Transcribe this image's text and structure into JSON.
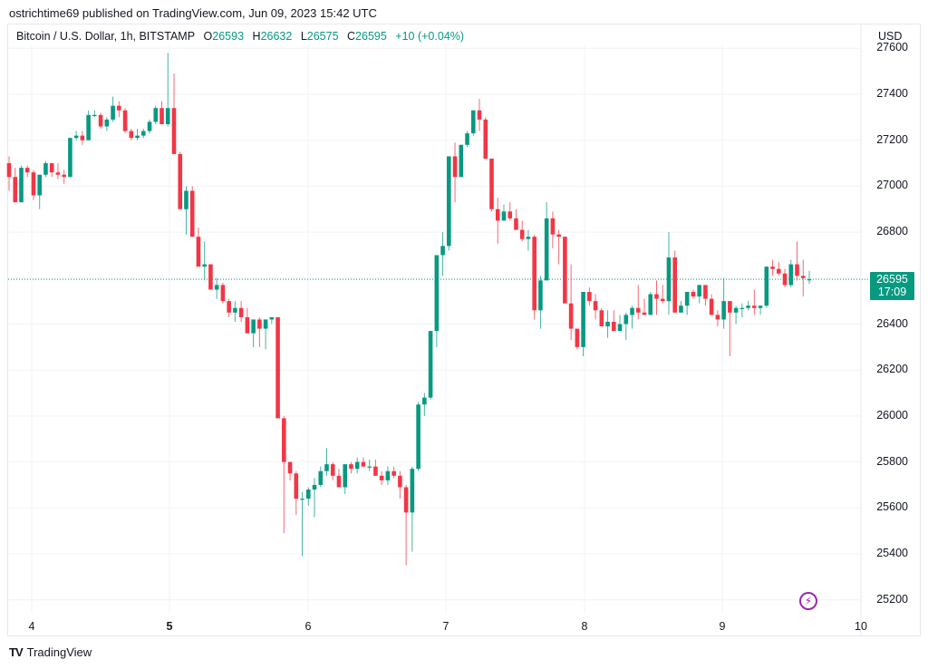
{
  "header": {
    "published_text": "ostrichtime69 published on TradingView.com, Jun 09, 2023 15:42 UTC"
  },
  "legend": {
    "symbol": "Bitcoin / U.S. Dollar, 1h, BITSTAMP",
    "open_prefix": "O",
    "open": "26593",
    "high_prefix": "H",
    "high": "26632",
    "low_prefix": "L",
    "low": "26575",
    "close_prefix": "C",
    "close": "26595",
    "change": "+10 (+0.04%)"
  },
  "price_axis": {
    "currency": "USD",
    "ticks": [
      "27600",
      "27400",
      "27200",
      "27000",
      "26800",
      "26600",
      "26400",
      "26200",
      "26000",
      "25800",
      "25600",
      "25400",
      "25200"
    ],
    "last_price": "26595",
    "countdown": "17:09"
  },
  "time_axis": {
    "ticks": [
      {
        "label": "4",
        "bold": false
      },
      {
        "label": "5",
        "bold": true
      },
      {
        "label": "6",
        "bold": false
      },
      {
        "label": "7",
        "bold": false
      },
      {
        "label": "8",
        "bold": false
      },
      {
        "label": "9",
        "bold": false
      },
      {
        "label": "10",
        "bold": false
      }
    ]
  },
  "colors": {
    "up": "#089981",
    "down": "#f23645",
    "grid": "#f0f3fa",
    "last_line": "#089981",
    "badge": "#089981",
    "bolt": "#9c27b0"
  },
  "branding": {
    "logo_mark": "TV",
    "name": "TradingView"
  },
  "bolt_icon": "⚡",
  "chart_data": {
    "type": "candlestick",
    "title": "Bitcoin / U.S. Dollar, 1h, BITSTAMP",
    "xlabel": "",
    "ylabel": "USD",
    "ylim": [
      25150,
      27650
    ],
    "grid": true,
    "x_ticks": [
      "4",
      "5",
      "6",
      "7",
      "8",
      "9",
      "10"
    ],
    "y_ticks": [
      25200,
      25400,
      25600,
      25800,
      26000,
      26200,
      26400,
      26600,
      26800,
      27000,
      27200,
      27400,
      27600
    ],
    "last_price": 26595,
    "interval": "1h",
    "candles": [
      [
        27100,
        27130,
        26980,
        27040
      ],
      [
        27040,
        27080,
        26940,
        26930
      ],
      [
        26930,
        27090,
        26930,
        27080
      ],
      [
        27080,
        27090,
        27040,
        27060
      ],
      [
        27060,
        27070,
        26940,
        26960
      ],
      [
        26960,
        27040,
        26900,
        27050
      ],
      [
        27050,
        27110,
        27040,
        27100
      ],
      [
        27100,
        27100,
        27040,
        27060
      ],
      [
        27060,
        27100,
        27030,
        27050
      ],
      [
        27050,
        27070,
        27010,
        27040
      ],
      [
        27040,
        27210,
        27040,
        27210
      ],
      [
        27210,
        27240,
        27200,
        27220
      ],
      [
        27220,
        27240,
        27180,
        27200
      ],
      [
        27200,
        27330,
        27200,
        27310
      ],
      [
        27310,
        27330,
        27300,
        27310
      ],
      [
        27310,
        27320,
        27250,
        27260
      ],
      [
        27260,
        27300,
        27240,
        27290
      ],
      [
        27290,
        27390,
        27280,
        27350
      ],
      [
        27350,
        27370,
        27300,
        27330
      ],
      [
        27330,
        27340,
        27230,
        27240
      ],
      [
        27240,
        27250,
        27200,
        27210
      ],
      [
        27210,
        27250,
        27200,
        27220
      ],
      [
        27220,
        27250,
        27210,
        27240
      ],
      [
        27240,
        27290,
        27230,
        27280
      ],
      [
        27280,
        27350,
        27270,
        27340
      ],
      [
        27340,
        27370,
        27270,
        27270
      ],
      [
        27270,
        27580,
        27260,
        27340
      ],
      [
        27340,
        27490,
        27160,
        27140
      ],
      [
        27140,
        27150,
        26950,
        26900
      ],
      [
        26900,
        27000,
        26790,
        26980
      ],
      [
        26980,
        27000,
        26790,
        26780
      ],
      [
        26780,
        26820,
        26670,
        26650
      ],
      [
        26650,
        26760,
        26590,
        26660
      ],
      [
        26660,
        26660,
        26560,
        26550
      ],
      [
        26550,
        26600,
        26510,
        26570
      ],
      [
        26570,
        26580,
        26490,
        26500
      ],
      [
        26500,
        26510,
        26430,
        26450
      ],
      [
        26450,
        26500,
        26410,
        26470
      ],
      [
        26470,
        26500,
        26410,
        26430
      ],
      [
        26430,
        26470,
        26360,
        26360
      ],
      [
        26360,
        26420,
        26300,
        26420
      ],
      [
        26420,
        26430,
        26300,
        26380
      ],
      [
        26380,
        26420,
        26290,
        26420
      ],
      [
        26420,
        26430,
        26400,
        26430
      ],
      [
        26430,
        26430,
        25990,
        25990
      ],
      [
        25990,
        26000,
        25490,
        25800
      ],
      [
        25800,
        25800,
        25720,
        25750
      ],
      [
        25750,
        25760,
        25570,
        25640
      ],
      [
        25640,
        25670,
        25390,
        25640
      ],
      [
        25640,
        25690,
        25610,
        25680
      ],
      [
        25680,
        25730,
        25560,
        25700
      ],
      [
        25700,
        25780,
        25690,
        25760
      ],
      [
        25760,
        25860,
        25740,
        25790
      ],
      [
        25790,
        25800,
        25720,
        25740
      ],
      [
        25740,
        25770,
        25690,
        25690
      ],
      [
        25690,
        25790,
        25660,
        25790
      ],
      [
        25790,
        25800,
        25750,
        25770
      ],
      [
        25770,
        25820,
        25750,
        25800
      ],
      [
        25800,
        25820,
        25780,
        25780
      ],
      [
        25780,
        25810,
        25760,
        25780
      ],
      [
        25780,
        25810,
        25740,
        25740
      ],
      [
        25740,
        25760,
        25700,
        25720
      ],
      [
        25720,
        25780,
        25700,
        25760
      ],
      [
        25760,
        25780,
        25730,
        25740
      ],
      [
        25740,
        25760,
        25640,
        25690
      ],
      [
        25690,
        25700,
        25350,
        25580
      ],
      [
        25580,
        25780,
        25410,
        25770
      ],
      [
        25770,
        26060,
        25760,
        26050
      ],
      [
        26050,
        26100,
        26000,
        26080
      ],
      [
        26080,
        26370,
        26070,
        26370
      ],
      [
        26370,
        26430,
        26300,
        26700
      ],
      [
        26700,
        26800,
        26610,
        26740
      ],
      [
        26740,
        27000,
        26720,
        27130
      ],
      [
        27130,
        27190,
        26930,
        27040
      ],
      [
        27040,
        27130,
        27040,
        27180
      ],
      [
        27180,
        27240,
        27170,
        27230
      ],
      [
        27230,
        27310,
        27220,
        27330
      ],
      [
        27330,
        27380,
        27240,
        27290
      ],
      [
        27290,
        27300,
        27120,
        27120
      ],
      [
        27120,
        27120,
        26890,
        26900
      ],
      [
        26900,
        26950,
        26750,
        26850
      ],
      [
        26850,
        26920,
        26880,
        26890
      ],
      [
        26890,
        26930,
        26850,
        26860
      ],
      [
        26860,
        26900,
        26810,
        26810
      ],
      [
        26810,
        26850,
        26760,
        26770
      ],
      [
        26770,
        26810,
        26720,
        26780
      ],
      [
        26780,
        26790,
        26420,
        26460
      ],
      [
        26460,
        26610,
        26380,
        26590
      ],
      [
        26590,
        26930,
        26590,
        26860
      ],
      [
        26860,
        26890,
        26730,
        26790
      ],
      [
        26790,
        26810,
        26660,
        26780
      ],
      [
        26780,
        26780,
        26500,
        26490
      ],
      [
        26490,
        26660,
        26330,
        26380
      ],
      [
        26380,
        26330,
        26290,
        26300
      ],
      [
        26300,
        26540,
        26260,
        26540
      ],
      [
        26540,
        26560,
        26480,
        26500
      ],
      [
        26500,
        26530,
        26420,
        26460
      ],
      [
        26460,
        26470,
        26400,
        26390
      ],
      [
        26390,
        26460,
        26340,
        26410
      ],
      [
        26410,
        26460,
        26370,
        26370
      ],
      [
        26370,
        26440,
        26370,
        26400
      ],
      [
        26400,
        26450,
        26330,
        26440
      ],
      [
        26440,
        26480,
        26380,
        26470
      ],
      [
        26470,
        26570,
        26420,
        26450
      ],
      [
        26450,
        26510,
        26470,
        26440
      ],
      [
        26440,
        26540,
        26470,
        26530
      ],
      [
        26530,
        26590,
        26440,
        26510
      ],
      [
        26510,
        26570,
        26490,
        26500
      ],
      [
        26500,
        26800,
        26440,
        26690
      ],
      [
        26690,
        26720,
        26450,
        26450
      ],
      [
        26450,
        26500,
        26480,
        26480
      ],
      [
        26480,
        26540,
        26440,
        26540
      ],
      [
        26540,
        26550,
        26510,
        26520
      ],
      [
        26520,
        26560,
        26490,
        26570
      ],
      [
        26570,
        26570,
        26480,
        26510
      ],
      [
        26510,
        26530,
        26440,
        26440
      ],
      [
        26440,
        26460,
        26390,
        26420
      ],
      [
        26420,
        26600,
        26380,
        26500
      ],
      [
        26500,
        26500,
        26260,
        26450
      ],
      [
        26450,
        26480,
        26400,
        26470
      ],
      [
        26470,
        26490,
        26430,
        26470
      ],
      [
        26470,
        26500,
        26460,
        26480
      ],
      [
        26480,
        26550,
        26440,
        26470
      ],
      [
        26470,
        26480,
        26440,
        26480
      ],
      [
        26480,
        26650,
        26470,
        26650
      ],
      [
        26650,
        26680,
        26610,
        26640
      ],
      [
        26640,
        26670,
        26610,
        26620
      ],
      [
        26620,
        26640,
        26560,
        26570
      ],
      [
        26570,
        26680,
        26560,
        26660
      ],
      [
        26660,
        26760,
        26590,
        26610
      ],
      [
        26610,
        26680,
        26520,
        26600
      ],
      [
        26593,
        26632,
        26575,
        26595
      ]
    ]
  }
}
